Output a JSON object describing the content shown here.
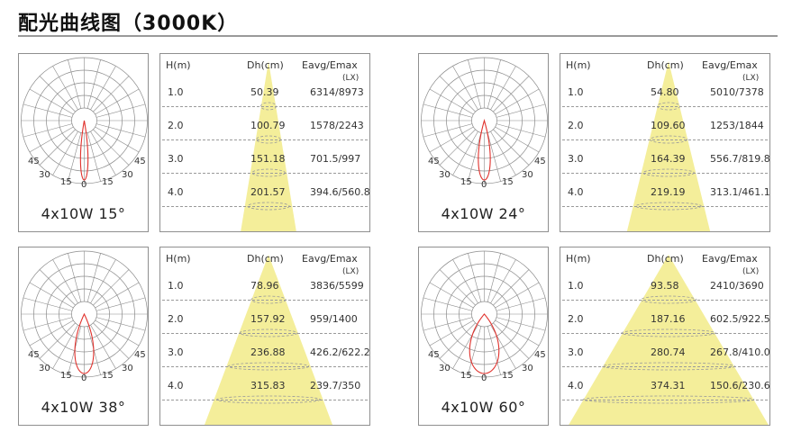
{
  "title": "配光曲线图（3000K）",
  "headers": {
    "h": "H(m)",
    "dh": "Dh(cm)",
    "eavg": "Eavg/Emax",
    "unit": "(LX)"
  },
  "polar_ticks": {
    "left45": "45",
    "right45": "45",
    "left30": "30",
    "right30": "30",
    "left15": "15",
    "right15": "15",
    "zero": "0"
  },
  "colors": {
    "beam": "#f4ee9a",
    "curve": "#e0312c",
    "grid": "#8a8a8a",
    "border": "#8f8f8f"
  },
  "panels": [
    {
      "label": "4x10W 15°",
      "beam_angle_deg": 15,
      "rows": [
        {
          "h": "1.0",
          "dh": "50.39",
          "e": "6314/8973"
        },
        {
          "h": "2.0",
          "dh": "100.79",
          "e": "1578/2243"
        },
        {
          "h": "3.0",
          "dh": "151.18",
          "e": "701.5/997"
        },
        {
          "h": "4.0",
          "dh": "201.57",
          "e": "394.6/560.8"
        }
      ]
    },
    {
      "label": "4x10W 24°",
      "beam_angle_deg": 24,
      "rows": [
        {
          "h": "1.0",
          "dh": "54.80",
          "e": "5010/7378"
        },
        {
          "h": "2.0",
          "dh": "109.60",
          "e": "1253/1844"
        },
        {
          "h": "3.0",
          "dh": "164.39",
          "e": "556.7/819.8"
        },
        {
          "h": "4.0",
          "dh": "219.19",
          "e": "313.1/461.1"
        }
      ]
    },
    {
      "label": "4x10W 38°",
      "beam_angle_deg": 38,
      "rows": [
        {
          "h": "1.0",
          "dh": "78.96",
          "e": "3836/5599"
        },
        {
          "h": "2.0",
          "dh": "157.92",
          "e": "959/1400"
        },
        {
          "h": "3.0",
          "dh": "236.88",
          "e": "426.2/622.2"
        },
        {
          "h": "4.0",
          "dh": "315.83",
          "e": "239.7/350"
        }
      ]
    },
    {
      "label": "4x10W 60°",
      "beam_angle_deg": 60,
      "rows": [
        {
          "h": "1.0",
          "dh": "93.58",
          "e": "2410/3690"
        },
        {
          "h": "2.0",
          "dh": "187.16",
          "e": "602.5/922.5"
        },
        {
          "h": "3.0",
          "dh": "280.74",
          "e": "267.8/410.0"
        },
        {
          "h": "4.0",
          "dh": "374.31",
          "e": "150.6/230.6"
        }
      ]
    }
  ]
}
